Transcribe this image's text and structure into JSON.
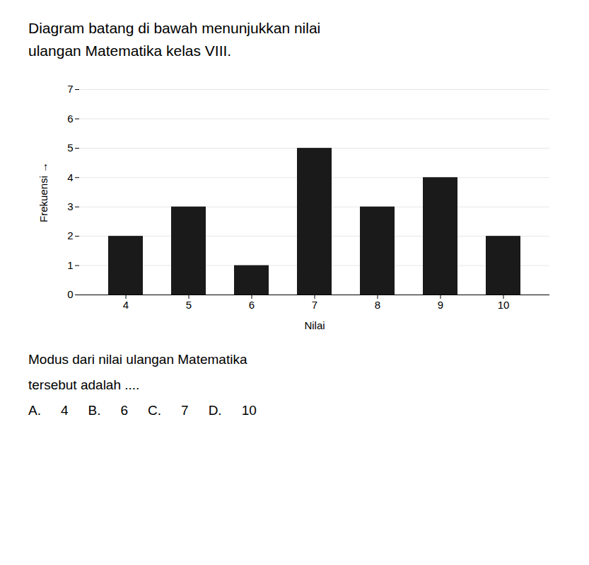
{
  "chart_data": {
    "type": "bar",
    "title": "Diagram batang di bawah menunjukkan nilai",
    "subtitle": "ulangan Matematika kelas VIII.",
    "categories": [
      4,
      5,
      6,
      7,
      8,
      9,
      10
    ],
    "values": [
      2,
      3,
      1,
      5,
      3,
      4,
      2
    ],
    "color": "#1a1a1a",
    "xlabel": "Nilai",
    "ylabel": "Frekuensi",
    "ylim": [
      0,
      7
    ],
    "yticks": [
      0,
      1,
      2,
      3,
      4,
      5,
      6,
      7
    ],
    "grid": true,
    "annotations": [
      [
        "Modus dari nilai ulangan Matematika"
      ],
      [
        "tersebut adalah ...."
      ],
      [
        "A.",
        "4",
        "B.",
        "6",
        "C.",
        "7",
        "D.",
        "10"
      ]
    ]
  }
}
